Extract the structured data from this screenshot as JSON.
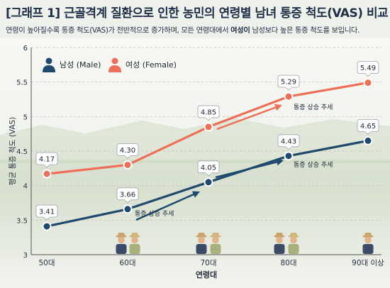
{
  "header": {
    "title": "[그래프 1] 근골격계 질환으로 인한 농민의 연령별 남녀 통증 척도(VAS) 비교",
    "subtitle_part1": "연령이 높아질수록 통증 척도(VAS)가 전반적으로 증가하며, 모든 연령대에서 ",
    "subtitle_bold": "여성이",
    "subtitle_part2": " 남성보다 높은 통증 척도를 보입니다."
  },
  "chart_data": {
    "type": "line",
    "categories": [
      "50대",
      "60대",
      "70대",
      "80대",
      "90대 이상"
    ],
    "series": [
      {
        "name": "남성 (Male)",
        "values": [
          3.41,
          3.66,
          4.05,
          4.43,
          4.65
        ],
        "color": "#1f4a6e"
      },
      {
        "name": "여성 (Female)",
        "values": [
          4.17,
          4.3,
          4.85,
          5.29,
          5.49
        ],
        "color": "#ee6f57"
      }
    ],
    "xlabel": "연령대",
    "ylabel": "평균 통증 척도 (VAS)",
    "ylim": [
      3,
      6
    ],
    "yticks": [
      "3",
      "3.5",
      "4",
      "4.5",
      "5",
      "5.5",
      "6"
    ],
    "grid": true,
    "legend": "top-left",
    "annotations": [
      {
        "text": "통증 상승 추세"
      },
      {
        "text": "통증 상승 추세"
      },
      {
        "text": "통증 상승 추세"
      }
    ]
  },
  "icons": {
    "legend_male": "male-person-icon",
    "legend_female": "female-person-icon",
    "farmers": "farmer-couple-icon"
  }
}
